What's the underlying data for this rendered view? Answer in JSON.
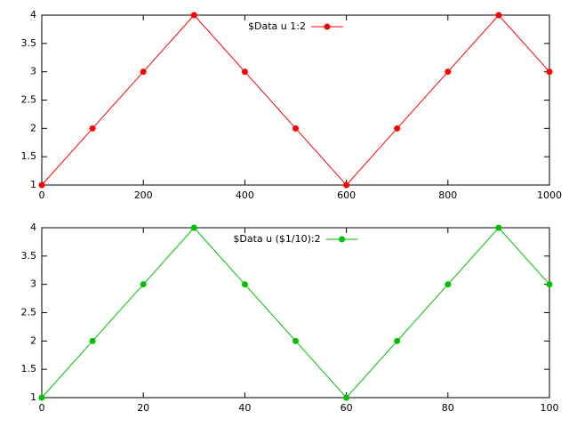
{
  "chart_data": [
    {
      "type": "line",
      "x": [
        0,
        100,
        200,
        300,
        400,
        500,
        600,
        700,
        800,
        900,
        1000
      ],
      "series": [
        {
          "name": "$Data u 1:2",
          "color": "#ff0000",
          "values": [
            1,
            2,
            3,
            4,
            3,
            2,
            1,
            2,
            3,
            4,
            3
          ]
        }
      ],
      "xlim": [
        0,
        1000
      ],
      "xticks": [
        0,
        200,
        400,
        600,
        800,
        1000
      ],
      "ylim": [
        1,
        4
      ],
      "yticks": [
        1,
        1.5,
        2,
        2.5,
        3,
        3.5,
        4
      ],
      "legend": "top-center",
      "markers": true
    },
    {
      "type": "line",
      "x": [
        0,
        10,
        20,
        30,
        40,
        50,
        60,
        70,
        80,
        90,
        100
      ],
      "series": [
        {
          "name": "$Data u ($1/10):2",
          "color": "#00c000",
          "values": [
            1,
            2,
            3,
            4,
            3,
            2,
            1,
            2,
            3,
            4,
            3
          ]
        }
      ],
      "xlim": [
        0,
        100
      ],
      "xticks": [
        0,
        20,
        40,
        60,
        80,
        100
      ],
      "ylim": [
        1,
        4
      ],
      "yticks": [
        1,
        1.5,
        2,
        2.5,
        3,
        3.5,
        4
      ],
      "legend": "top-center",
      "markers": true
    }
  ]
}
